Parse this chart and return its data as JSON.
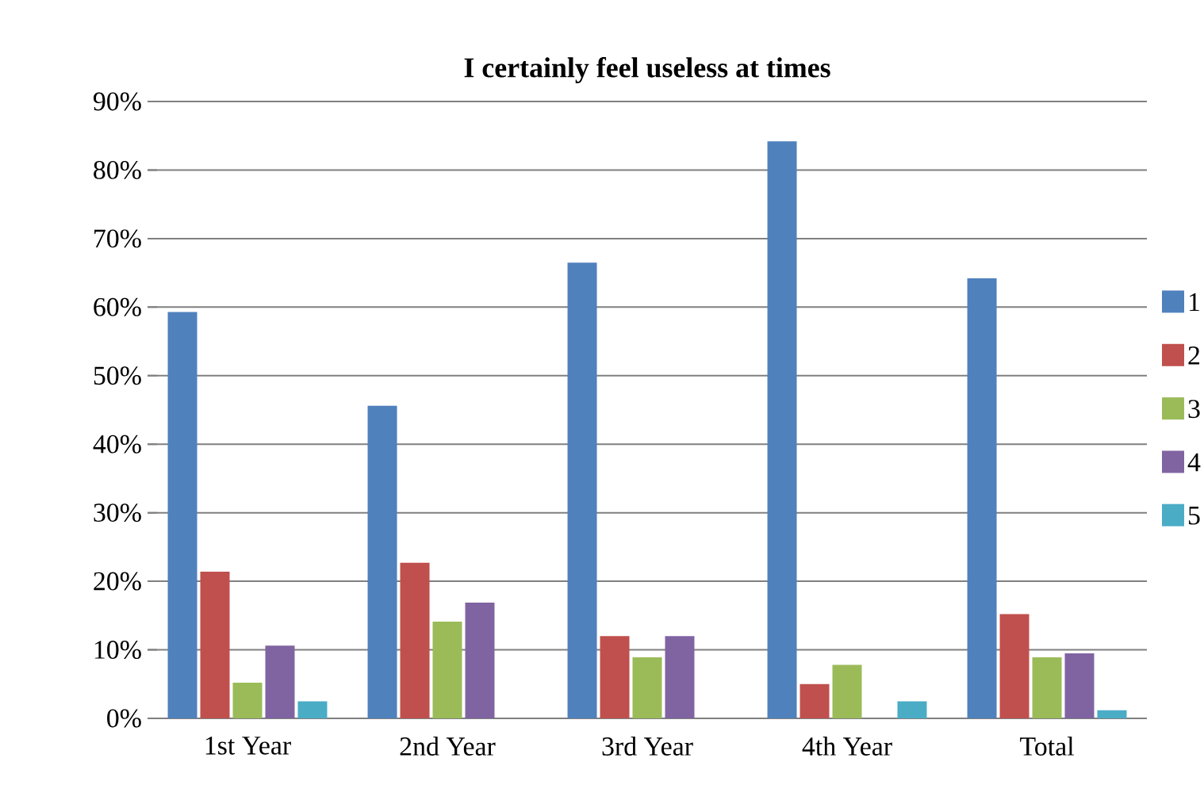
{
  "chart_data": {
    "type": "bar",
    "title": "I certainly feel useless at times",
    "categories": [
      "1st Year",
      "2nd Year",
      "3rd Year",
      "4th Year",
      "Total"
    ],
    "series": [
      {
        "name": "1",
        "color": "#4f81bd",
        "values": [
          59.3,
          45.6,
          66.5,
          84.2,
          64.2
        ]
      },
      {
        "name": "2",
        "color": "#c0504d",
        "values": [
          21.4,
          22.7,
          12.0,
          5.0,
          15.2
        ]
      },
      {
        "name": "3",
        "color": "#9bbb59",
        "values": [
          5.2,
          14.1,
          8.9,
          7.8,
          8.9
        ]
      },
      {
        "name": "4",
        "color": "#8064a2",
        "values": [
          10.6,
          16.9,
          12.0,
          0,
          9.5
        ]
      },
      {
        "name": "5",
        "color": "#4bacc6",
        "values": [
          2.5,
          0,
          0,
          2.5,
          1.2
        ]
      }
    ],
    "ylim": [
      0,
      90
    ],
    "yticks": [
      {
        "value": 0,
        "label": "0%"
      },
      {
        "value": 10,
        "label": "10%"
      },
      {
        "value": 20,
        "label": "20%"
      },
      {
        "value": 30,
        "label": "30%"
      },
      {
        "value": 40,
        "label": "40%"
      },
      {
        "value": 50,
        "label": "50%"
      },
      {
        "value": 60,
        "label": "60%"
      },
      {
        "value": 70,
        "label": "70%"
      },
      {
        "value": 80,
        "label": "80%"
      },
      {
        "value": 90,
        "label": "90%"
      }
    ],
    "grid": "y",
    "legend": "right"
  }
}
